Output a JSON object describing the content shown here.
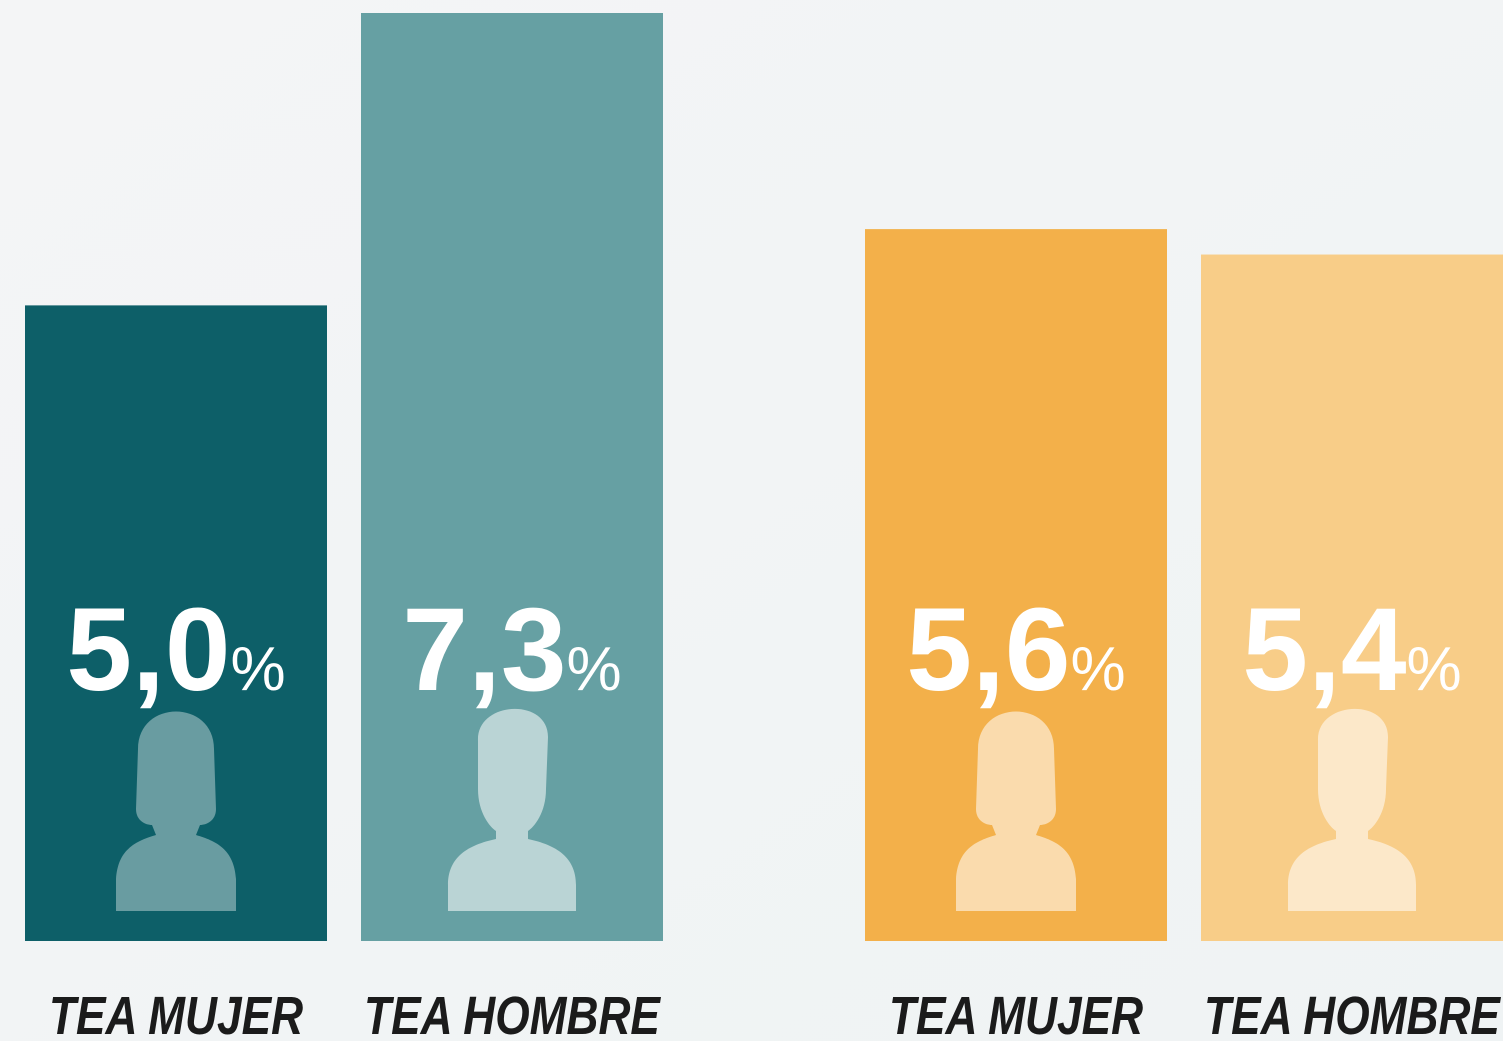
{
  "chart_data": {
    "type": "bar",
    "categories": [
      "TEA MUJER",
      "TEA HOMBRE",
      "TEA MUJER",
      "TEA HOMBRE"
    ],
    "values": [
      5.0,
      7.3,
      5.6,
      5.4
    ],
    "value_labels": [
      "5,0%",
      "7,3%",
      "5,6%",
      "5,4%"
    ],
    "colors": [
      "#0d5f68",
      "#66a0a3",
      "#f3b04a",
      "#f8cd88"
    ]
  }
}
